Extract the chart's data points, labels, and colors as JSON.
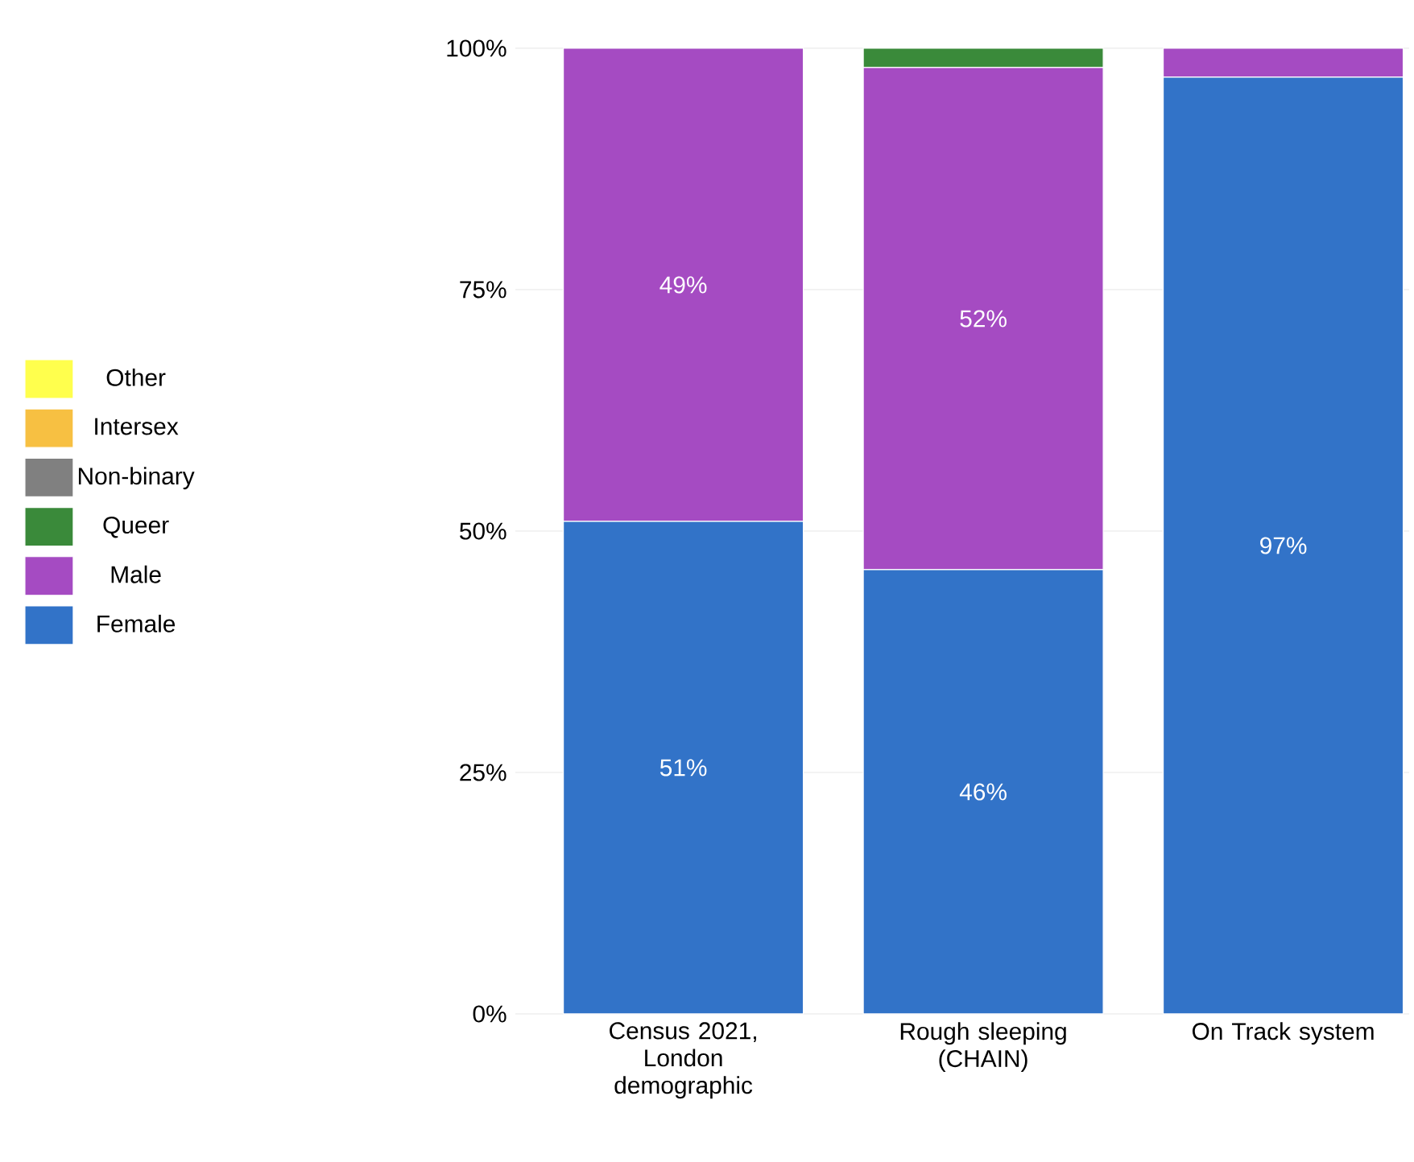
{
  "chart_data": {
    "type": "bar",
    "stacked": true,
    "categories": [
      "Census 2021, London demographic",
      "Rough sleeping (CHAIN)",
      "On Track system"
    ],
    "series": [
      {
        "name": "Female",
        "color": "#3273c8",
        "values": [
          51,
          46,
          97
        ],
        "value_labels": [
          "51%",
          "46%",
          "97%"
        ]
      },
      {
        "name": "Male",
        "color": "#a54bc2",
        "values": [
          49,
          52,
          3
        ],
        "value_labels": [
          "49%",
          "52%",
          null
        ]
      },
      {
        "name": "Queer",
        "color": "#3a8a3a",
        "values": [
          0,
          2,
          0
        ]
      },
      {
        "name": "Non-binary",
        "color": "#808080",
        "values": [
          0,
          0,
          0
        ]
      },
      {
        "name": "Intersex",
        "color": "#f7c042",
        "values": [
          0,
          0,
          0
        ]
      },
      {
        "name": "Other",
        "color": "#ffff4d",
        "values": [
          0,
          0,
          0
        ]
      }
    ],
    "ylim": [
      0,
      100
    ],
    "yticks": [
      {
        "value": 0,
        "label": "0%"
      },
      {
        "value": 25,
        "label": "25%"
      },
      {
        "value": 50,
        "label": "50%"
      },
      {
        "value": 75,
        "label": "75%"
      },
      {
        "value": 100,
        "label": "100%"
      }
    ],
    "grid": "y",
    "legend": "left"
  }
}
